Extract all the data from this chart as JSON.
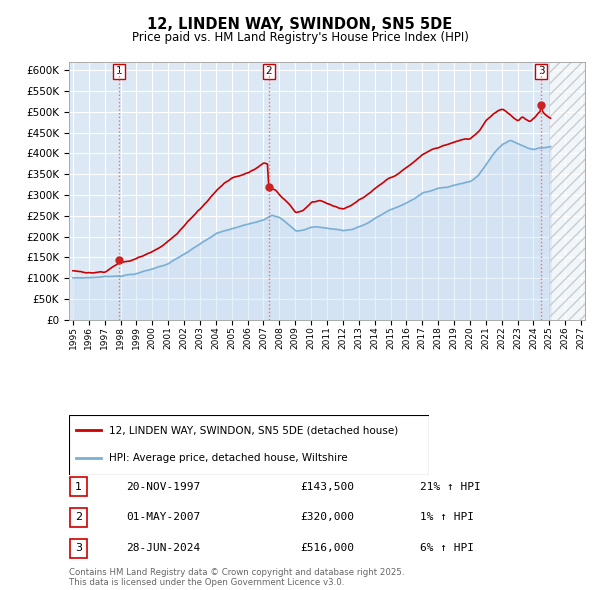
{
  "title": "12, LINDEN WAY, SWINDON, SN5 5DE",
  "subtitle": "Price paid vs. HM Land Registry's House Price Index (HPI)",
  "ylim": [
    0,
    620000
  ],
  "yticks": [
    0,
    50000,
    100000,
    150000,
    200000,
    250000,
    300000,
    350000,
    400000,
    450000,
    500000,
    550000,
    600000
  ],
  "ytick_labels": [
    "£0",
    "£50K",
    "£100K",
    "£150K",
    "£200K",
    "£250K",
    "£300K",
    "£350K",
    "£400K",
    "£450K",
    "£500K",
    "£550K",
    "£600K"
  ],
  "xlim_start": 1994.75,
  "xlim_end": 2027.25,
  "background_color": "#ffffff",
  "plot_bg_color": "#dce9f5",
  "grid_color": "#ffffff",
  "sale_dates": [
    1997.89,
    2007.33,
    2024.49
  ],
  "sale_prices": [
    143500,
    320000,
    516000
  ],
  "sale_labels": [
    "1",
    "2",
    "3"
  ],
  "red_line_color": "#cc0000",
  "blue_line_color": "#7aafd4",
  "dashed_line_color": "#e87070",
  "fill_color": "#c8dcf0",
  "legend_line1": "12, LINDEN WAY, SWINDON, SN5 5DE (detached house)",
  "legend_line2": "HPI: Average price, detached house, Wiltshire",
  "table_entries": [
    {
      "num": "1",
      "date": "20-NOV-1997",
      "price": "£143,500",
      "hpi": "21% ↑ HPI"
    },
    {
      "num": "2",
      "date": "01-MAY-2007",
      "price": "£320,000",
      "hpi": "1% ↑ HPI"
    },
    {
      "num": "3",
      "date": "28-JUN-2024",
      "price": "£516,000",
      "hpi": "6% ↑ HPI"
    }
  ],
  "footer": "Contains HM Land Registry data © Crown copyright and database right 2025.\nThis data is licensed under the Open Government Licence v3.0."
}
